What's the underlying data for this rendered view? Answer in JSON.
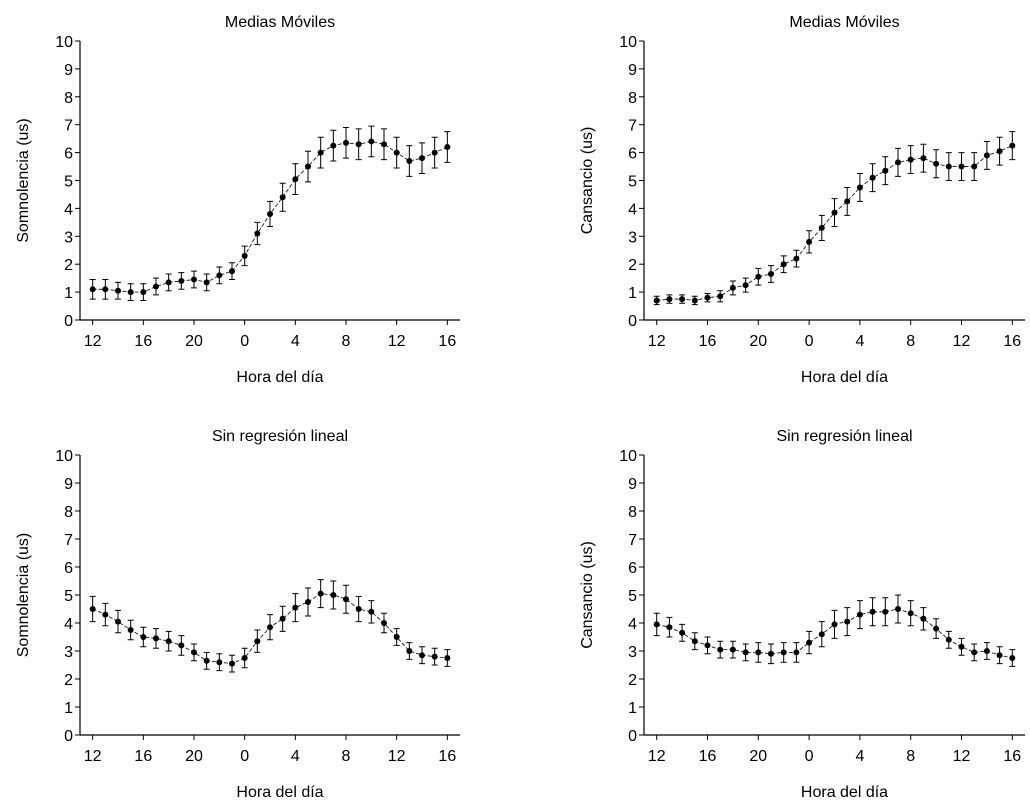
{
  "chart_data": [
    {
      "type": "line",
      "title": "Medias Móviles",
      "x_label": "Hora del día",
      "y_label": "Somnolencia (us)",
      "color": "#000000",
      "x": [
        12,
        13,
        14,
        15,
        16,
        17,
        18,
        19,
        20,
        21,
        22,
        23,
        24,
        25,
        26,
        27,
        28,
        29,
        30,
        31,
        32,
        33,
        34,
        35,
        36,
        37,
        38,
        39,
        40
      ],
      "values": [
        1.1,
        1.1,
        1.05,
        1.0,
        1.0,
        1.2,
        1.35,
        1.4,
        1.45,
        1.35,
        1.6,
        1.75,
        2.3,
        3.1,
        3.8,
        4.4,
        5.05,
        5.5,
        6.0,
        6.25,
        6.35,
        6.3,
        6.4,
        6.3,
        6.0,
        5.7,
        5.8,
        6.0,
        6.2
      ],
      "errors": [
        0.35,
        0.35,
        0.3,
        0.3,
        0.3,
        0.3,
        0.3,
        0.3,
        0.3,
        0.3,
        0.3,
        0.3,
        0.35,
        0.4,
        0.45,
        0.5,
        0.55,
        0.55,
        0.55,
        0.55,
        0.55,
        0.55,
        0.55,
        0.55,
        0.55,
        0.55,
        0.55,
        0.55,
        0.55
      ],
      "xlim": [
        11,
        41
      ],
      "ylim": [
        0,
        10
      ],
      "xticks": [
        12,
        16,
        20,
        {
          "value": 24,
          "label": "0"
        },
        {
          "value": 28,
          "label": "4"
        },
        {
          "value": 32,
          "label": "8"
        },
        {
          "value": 36,
          "label": "12"
        },
        {
          "value": 40,
          "label": "16"
        }
      ],
      "yticks": [
        0,
        1,
        2,
        3,
        4,
        5,
        6,
        7,
        8,
        9,
        10
      ]
    },
    {
      "type": "line",
      "title": "Medias Móviles",
      "x_label": "Hora del día",
      "y_label": "Cansancio (us)",
      "color": "#000000",
      "x": [
        12,
        13,
        14,
        15,
        16,
        17,
        18,
        19,
        20,
        21,
        22,
        23,
        24,
        25,
        26,
        27,
        28,
        29,
        30,
        31,
        32,
        33,
        34,
        35,
        36,
        37,
        38,
        39,
        40
      ],
      "values": [
        0.7,
        0.75,
        0.75,
        0.7,
        0.8,
        0.85,
        1.15,
        1.25,
        1.55,
        1.65,
        2.0,
        2.2,
        2.8,
        3.3,
        3.85,
        4.25,
        4.75,
        5.1,
        5.35,
        5.65,
        5.75,
        5.8,
        5.6,
        5.5,
        5.5,
        5.5,
        5.9,
        6.05,
        6.25
      ],
      "errors": [
        0.15,
        0.15,
        0.15,
        0.15,
        0.15,
        0.2,
        0.25,
        0.25,
        0.3,
        0.3,
        0.3,
        0.3,
        0.4,
        0.45,
        0.5,
        0.5,
        0.5,
        0.5,
        0.5,
        0.5,
        0.5,
        0.5,
        0.5,
        0.5,
        0.5,
        0.5,
        0.5,
        0.5,
        0.5
      ],
      "xlim": [
        11,
        41
      ],
      "ylim": [
        0,
        10
      ],
      "xticks": [
        12,
        16,
        20,
        {
          "value": 24,
          "label": "0"
        },
        {
          "value": 28,
          "label": "4"
        },
        {
          "value": 32,
          "label": "8"
        },
        {
          "value": 36,
          "label": "12"
        },
        {
          "value": 40,
          "label": "16"
        }
      ],
      "yticks": [
        0,
        1,
        2,
        3,
        4,
        5,
        6,
        7,
        8,
        9,
        10
      ]
    },
    {
      "type": "line",
      "title": "Sin regresión lineal",
      "x_label": "Hora del día",
      "y_label": "Somnolencia (us)",
      "color": "#000000",
      "x": [
        12,
        13,
        14,
        15,
        16,
        17,
        18,
        19,
        20,
        21,
        22,
        23,
        24,
        25,
        26,
        27,
        28,
        29,
        30,
        31,
        32,
        33,
        34,
        35,
        36,
        37,
        38,
        39,
        40
      ],
      "values": [
        4.5,
        4.3,
        4.05,
        3.75,
        3.5,
        3.45,
        3.35,
        3.2,
        2.95,
        2.65,
        2.6,
        2.55,
        2.75,
        3.35,
        3.85,
        4.15,
        4.55,
        4.75,
        5.05,
        5.0,
        4.85,
        4.5,
        4.4,
        4.0,
        3.5,
        3.0,
        2.85,
        2.8,
        2.75
      ],
      "errors": [
        0.45,
        0.4,
        0.4,
        0.35,
        0.35,
        0.35,
        0.35,
        0.35,
        0.3,
        0.3,
        0.3,
        0.3,
        0.35,
        0.4,
        0.45,
        0.45,
        0.5,
        0.5,
        0.5,
        0.5,
        0.5,
        0.45,
        0.4,
        0.35,
        0.3,
        0.3,
        0.3,
        0.3,
        0.3
      ],
      "xlim": [
        11,
        41
      ],
      "ylim": [
        0,
        10
      ],
      "xticks": [
        12,
        16,
        20,
        {
          "value": 24,
          "label": "0"
        },
        {
          "value": 28,
          "label": "4"
        },
        {
          "value": 32,
          "label": "8"
        },
        {
          "value": 36,
          "label": "12"
        },
        {
          "value": 40,
          "label": "16"
        }
      ],
      "yticks": [
        0,
        1,
        2,
        3,
        4,
        5,
        6,
        7,
        8,
        9,
        10
      ]
    },
    {
      "type": "line",
      "title": "Sin regresión lineal",
      "x_label": "Hora del día",
      "y_label": "Cansancio (us)",
      "color": "#000000",
      "x": [
        12,
        13,
        14,
        15,
        16,
        17,
        18,
        19,
        20,
        21,
        22,
        23,
        24,
        25,
        26,
        27,
        28,
        29,
        30,
        31,
        32,
        33,
        34,
        35,
        36,
        37,
        38,
        39,
        40
      ],
      "values": [
        3.95,
        3.85,
        3.65,
        3.35,
        3.2,
        3.05,
        3.05,
        2.95,
        2.95,
        2.9,
        2.95,
        2.95,
        3.3,
        3.6,
        3.95,
        4.05,
        4.3,
        4.4,
        4.4,
        4.5,
        4.35,
        4.15,
        3.8,
        3.4,
        3.15,
        2.95,
        3.0,
        2.85,
        2.75
      ],
      "errors": [
        0.4,
        0.35,
        0.3,
        0.3,
        0.3,
        0.3,
        0.3,
        0.3,
        0.35,
        0.35,
        0.35,
        0.35,
        0.4,
        0.45,
        0.5,
        0.5,
        0.5,
        0.5,
        0.5,
        0.5,
        0.45,
        0.4,
        0.35,
        0.3,
        0.3,
        0.3,
        0.3,
        0.3,
        0.3
      ],
      "xlim": [
        11,
        41
      ],
      "ylim": [
        0,
        10
      ],
      "xticks": [
        12,
        16,
        20,
        {
          "value": 24,
          "label": "0"
        },
        {
          "value": 28,
          "label": "4"
        },
        {
          "value": 32,
          "label": "8"
        },
        {
          "value": 36,
          "label": "12"
        },
        {
          "value": 40,
          "label": "16"
        }
      ],
      "yticks": [
        0,
        1,
        2,
        3,
        4,
        5,
        6,
        7,
        8,
        9,
        10
      ]
    }
  ]
}
